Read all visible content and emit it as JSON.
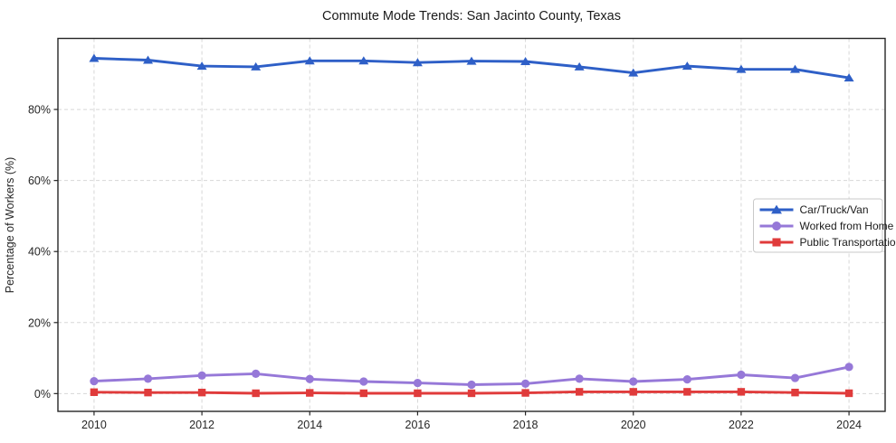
{
  "page": {
    "background": "#ffffff"
  },
  "chart_data": {
    "type": "line",
    "title": "Commute Mode Trends: San Jacinto County, Texas",
    "xlabel": "",
    "ylabel": "Percentage of Workers (%)",
    "x": [
      2010,
      2011,
      2012,
      2013,
      2014,
      2015,
      2016,
      2017,
      2018,
      2019,
      2020,
      2021,
      2022,
      2023,
      2024
    ],
    "x_ticks": [
      2010,
      2012,
      2014,
      2016,
      2018,
      2020,
      2022,
      2024
    ],
    "x_tick_labels": [
      "2010",
      "2012",
      "2014",
      "2016",
      "2018",
      "2020",
      "2022",
      "2024"
    ],
    "y_ticks": [
      0,
      20,
      40,
      60,
      80
    ],
    "y_tick_labels": [
      "0%",
      "20%",
      "40%",
      "60%",
      "80%"
    ],
    "xlim": [
      2009.33,
      2024.67
    ],
    "ylim": [
      -5,
      100
    ],
    "grid": true,
    "grid_style": "dashed",
    "grid_color": "#d7d7d7",
    "axis_color": "#262626",
    "legend": {
      "position": "center-right",
      "background": "#ffffff",
      "border_color": "#c9c9c9",
      "entries": [
        "Car/Truck/Van",
        "Worked from Home",
        "Public Transportation"
      ]
    },
    "series": [
      {
        "name": "Car/Truck/Van",
        "color": "#2e5fc7",
        "marker": "triangle",
        "values": [
          94.4,
          93.9,
          92.2,
          92.0,
          93.7,
          93.7,
          93.2,
          93.6,
          93.5,
          92.0,
          90.3,
          92.2,
          91.3,
          91.3,
          88.9
        ]
      },
      {
        "name": "Worked from Home",
        "color": "#9678d8",
        "marker": "circle",
        "values": [
          3.5,
          4.2,
          5.1,
          5.6,
          4.1,
          3.4,
          3.0,
          2.5,
          2.8,
          4.2,
          3.4,
          4.0,
          5.3,
          4.4,
          7.5
        ]
      },
      {
        "name": "Public Transportation",
        "color": "#e03b3b",
        "marker": "square",
        "values": [
          0.4,
          0.3,
          0.3,
          0.1,
          0.2,
          0.1,
          0.1,
          0.1,
          0.2,
          0.5,
          0.5,
          0.5,
          0.5,
          0.3,
          0.1
        ]
      }
    ]
  }
}
